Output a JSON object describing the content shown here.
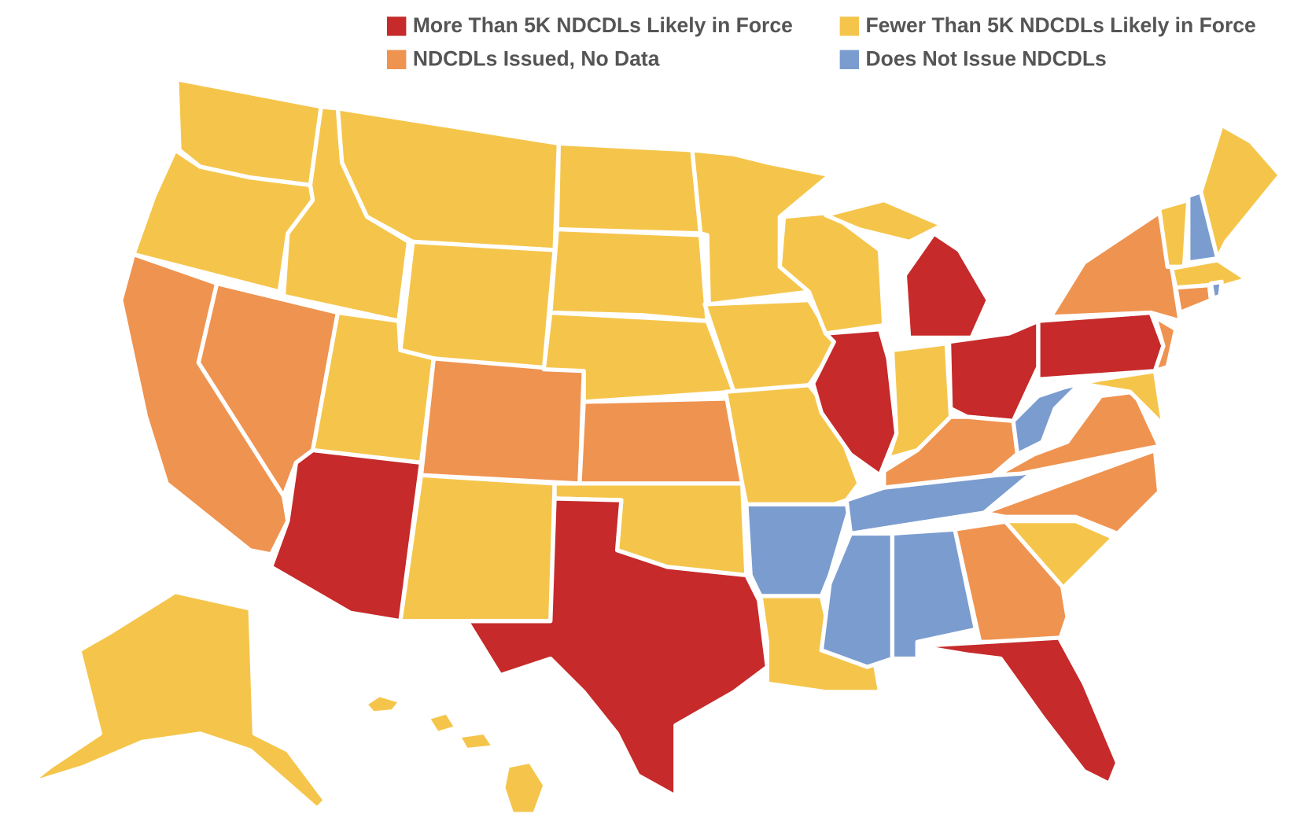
{
  "legend": {
    "items": [
      {
        "label": "More Than 5K NDCDLs Likely in Force",
        "color": "#c62a2a"
      },
      {
        "label": "Fewer Than 5K NDCDLs Likely in Force",
        "color": "#f5c54b"
      },
      {
        "label": "NDCDLs Issued, No Data",
        "color": "#ef9350"
      },
      {
        "label": "Does Not Issue NDCDLs",
        "color": "#7b9ccf"
      }
    ]
  }
}
